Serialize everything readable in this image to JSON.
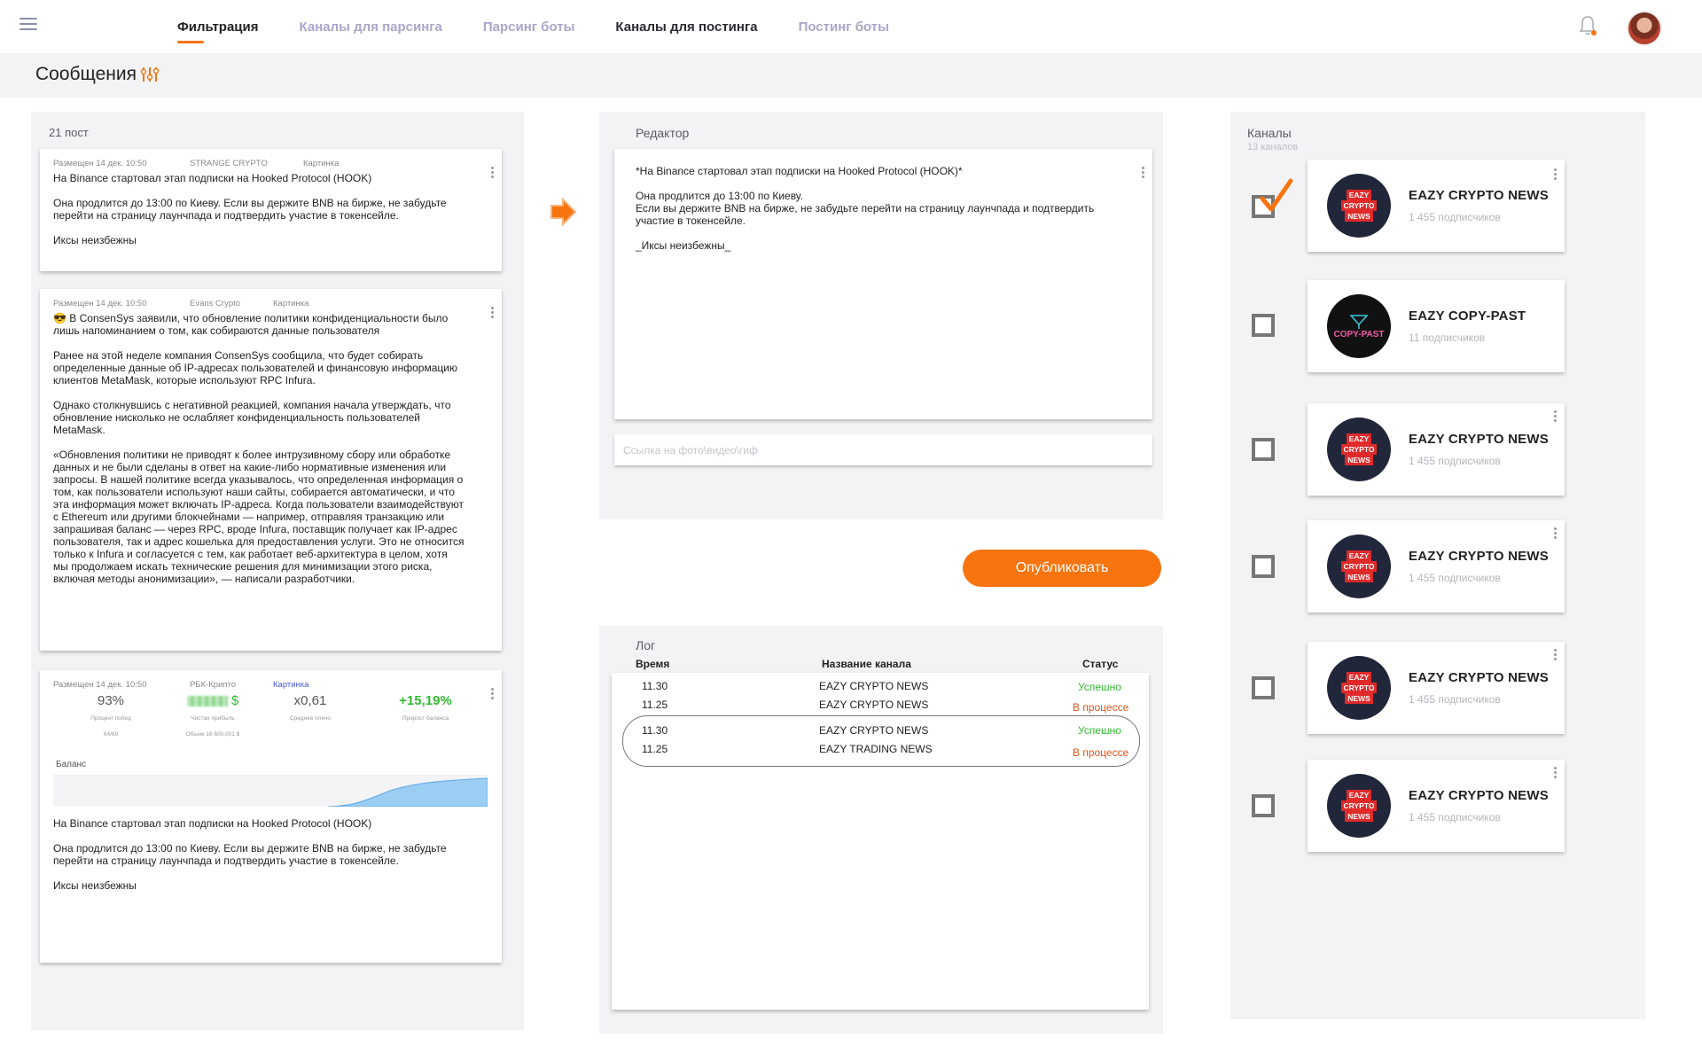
{
  "nav": {
    "tabs": [
      {
        "label": "Фильтрация"
      },
      {
        "label": "Каналы для парсинга"
      },
      {
        "label": "Парсинг боты"
      },
      {
        "label": "Каналы для постинга"
      },
      {
        "label": "Постинг боты"
      }
    ]
  },
  "page": {
    "title": "Сообщения"
  },
  "posts": {
    "count_label": "21 пост",
    "items": [
      {
        "date": "Размещен 14 дек.  10:50",
        "source": "STRANGE CRYPTO",
        "type": "Картинка",
        "text": "На Binance стартовал этап подписки на Hooked Protocol (HOOK)\n\n Она продлится до 13:00 по Киеву. Если вы держите BNB на бирже, не забудьте\nперейти на страницу лаунчпада и подтвердить участие в токенсейле.\n\nИксы неизбежны"
      },
      {
        "date": "Размещен 14 дек.  10:50",
        "source": "Evans Crypto",
        "type": "Картинка",
        "text": "😎 В ConsenSys заявили, что обновление политики конфиденциальности было\nлишь напоминанием о том, как собираются данные пользователя\n\nРанее на этой неделе компания ConsenSys сообщила, что будет собирать\nопределенные данные об IP-адресах пользователей и финансовую информацию\nклиентов MetaMask, которые используют RPC Infura.\n\nОднако столкнувшись с негативной реакцией, компания начала утверждать, что\nобновление нисколько не ослабляет конфиденциальность пользователей\nMetaMask.\n\n«Обновления политики не приводят к более интрузивному сбору или обработке\nданных и не были сделаны в ответ на какие-либо нормативные изменения или\nзапросы. В нашей политике всегда указывалось, что определенная информация о\nтом, как пользователи используют наши сайты, собирается автоматически, и что\nэта информация может включать IP-адреса. Когда пользователи взаимодействуют\nс Ethereum или другими блокчейнами — например, отправляя транзакцию или\nзапрашивая баланс — через RPC, вроде Infura, поставщик получает как IP-адрес\nпользователя, так и адрес кошелька для предоставления услуги. Это не относится\nтолько к Infura и согласуется с тем, как работает веб-архитектура в целом, хотя\nмы продолжаем искать технические решения для минимизации этого риска,\nвключая методы анонимизации», — написали разработчики."
      },
      {
        "date": "Размещен 14 дек.  10:50",
        "source": "РБК-Крипто",
        "type": "Картинка",
        "stats": [
          {
            "value": "93%",
            "label": "Процент побед",
            "sub": "64/69"
          },
          {
            "value": "$",
            "label": "Чистая прибыль",
            "sub": "Объем 16 600,001 $"
          },
          {
            "value": "x0,61",
            "label": "Среднее плечо",
            "sub": ""
          },
          {
            "value": "+15,19%",
            "label": "Прирост баланса",
            "sub": ""
          }
        ],
        "balance_label": "Баланс",
        "text": "На Binance стартовал этап подписки на Hooked Protocol (HOOK)\n\n Она продлится до 13:00 по Киеву. Если вы держите BNB на бирже, не забудьте\nперейти на страницу лаунчпада и подтвердить участие в токенсейле.\n\nИксы неизбежны"
      }
    ]
  },
  "editor": {
    "label": "Редактор",
    "text": "*На Binance стартовал этап подписки на Hooked Protocol (HOOK)*\n\n Она продлится до 13:00 по Киеву.\nЕсли вы держите BNB на бирже, не забудьте перейти на страницу лаунчпада и подтвердить\nучастие в токенсейле.\n\n_Иксы неизбежны_",
    "link_placeholder": "Ссылка на фото\\видео\\гиф",
    "publish_label": "Опубликовать"
  },
  "log": {
    "label": "Лог",
    "headers": {
      "time": "Время",
      "channel": "Название канала",
      "status": "Статус"
    },
    "rows": [
      {
        "time": "11.30",
        "channel": "EAZY CRYPTO NEWS",
        "status": "Успешно",
        "state": "ok"
      },
      {
        "time": "11.25",
        "channel": "EAZY CRYPTO NEWS",
        "status": "В процессе",
        "state": "proc"
      },
      {
        "time": "11.30",
        "channel": "EAZY CRYPTO NEWS",
        "status": "Успешно",
        "state": "ok"
      },
      {
        "time": "11.25",
        "channel": "EAZY TRADING NEWS",
        "status": "В процессе",
        "state": "proc"
      }
    ]
  },
  "channels": {
    "label": "Каналы",
    "count_label": "13 каналов",
    "items": [
      {
        "name": "EAZY CRYPTO NEWS",
        "subs": "1 455 подписчиков",
        "checked": true,
        "logo": "eazy"
      },
      {
        "name": "EAZY COPY-PAST",
        "subs": "11 подписчиков",
        "checked": false,
        "logo": "copypast"
      },
      {
        "name": "EAZY CRYPTO NEWS",
        "subs": "1 455 подписчиков",
        "checked": false,
        "logo": "eazy"
      },
      {
        "name": "EAZY CRYPTO NEWS",
        "subs": "1 455 подписчиков",
        "checked": false,
        "logo": "eazy"
      },
      {
        "name": "EAZY CRYPTO NEWS",
        "subs": "1 455 подписчиков",
        "checked": false,
        "logo": "eazy"
      },
      {
        "name": "EAZY CRYPTO NEWS",
        "subs": "1 455 подписчиков",
        "checked": false,
        "logo": "eazy"
      }
    ],
    "logo_text": [
      "EAZY",
      "CRYPTO",
      "NEWS"
    ],
    "copypast_logo_text": "COPY-PAST"
  },
  "colors": {
    "accent": "#f7740f",
    "success": "#33bb33",
    "progress": "#e0571c",
    "link": "#4a56d6"
  }
}
